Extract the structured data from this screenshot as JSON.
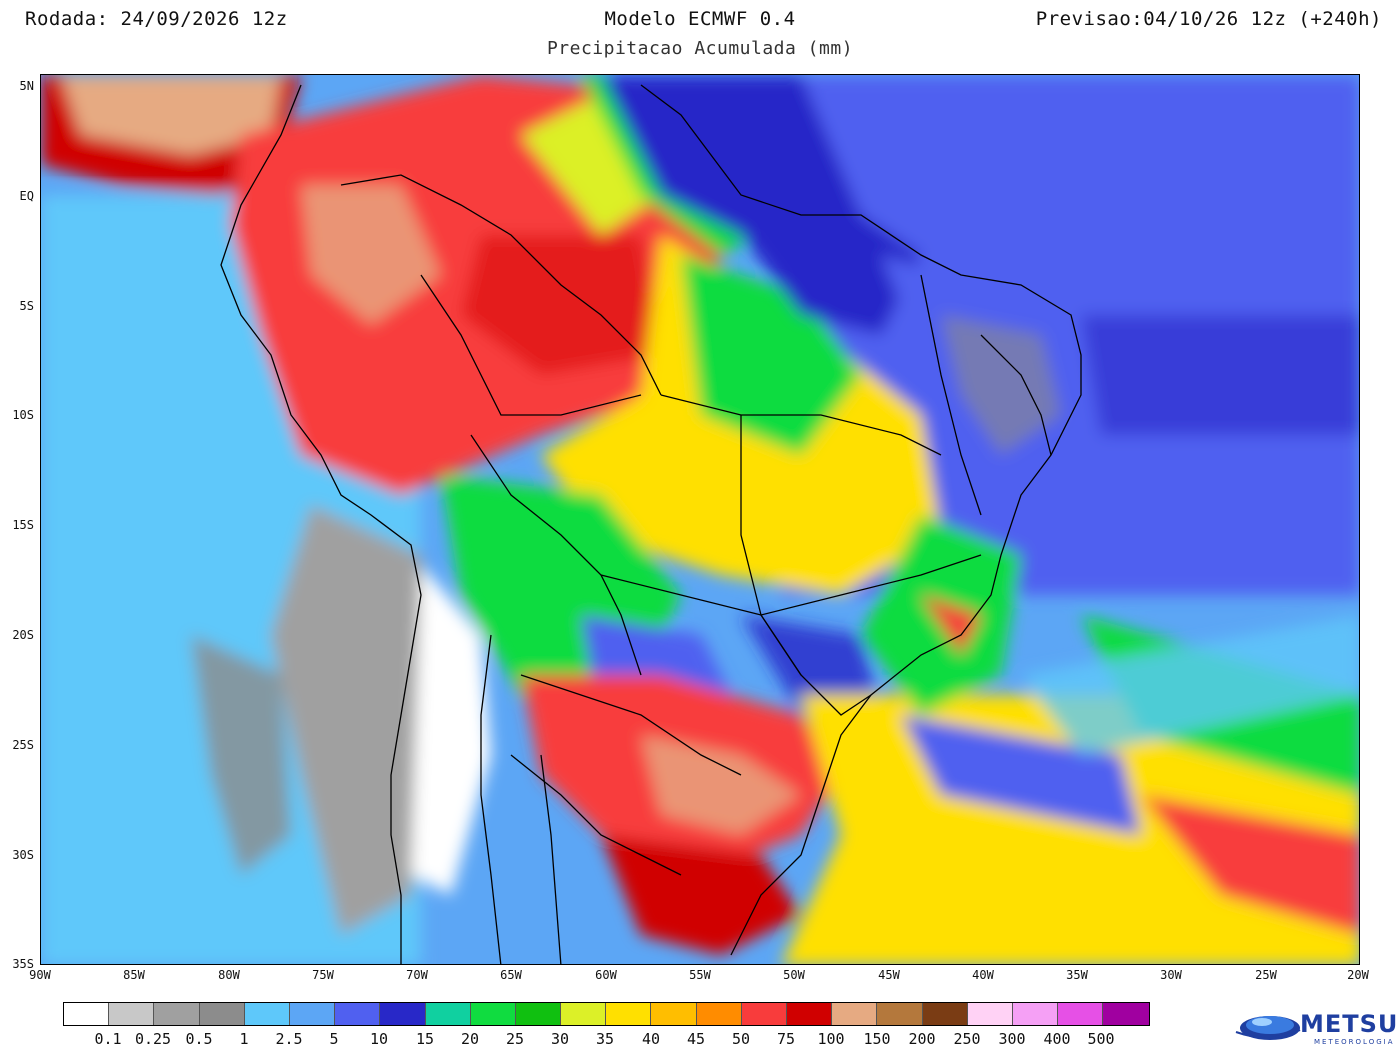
{
  "header": {
    "left": "Rodada: 24/09/2026 12z",
    "center": "Modelo ECMWF 0.4",
    "right": "Previsao:04/10/26 12z (+240h)",
    "subtitle": "Precipitacao Acumulada (mm)"
  },
  "axes": {
    "lat_labels": [
      "5N",
      "EQ",
      "5S",
      "10S",
      "15S",
      "20S",
      "25S",
      "30S",
      "35S"
    ],
    "lon_labels": [
      "90W",
      "85W",
      "80W",
      "75W",
      "70W",
      "65W",
      "60W",
      "55W",
      "50W",
      "45W",
      "40W",
      "35W",
      "30W",
      "25W",
      "20W"
    ]
  },
  "map": {
    "lat_range": [
      6.6,
      -35
    ],
    "lon_range": [
      -90,
      -20
    ]
  },
  "legend": {
    "colors": [
      "#ffffff",
      "#c8c8c8",
      "#a0a0a0",
      "#8c8c8c",
      "#5ec8fa",
      "#5ca6f5",
      "#5060f0",
      "#2828c8",
      "#10d0a0",
      "#10dc40",
      "#10c010",
      "#dcf028",
      "#ffe000",
      "#ffbe00",
      "#ff8c00",
      "#f83c3c",
      "#d00000",
      "#e6aa82",
      "#b4783c",
      "#7a3c14",
      "#ffd2f5",
      "#f5a0f5",
      "#e650e6",
      "#a000a0"
    ],
    "ticks": [
      "0.1",
      "0.25",
      "0.5",
      "1",
      "2.5",
      "5",
      "10",
      "15",
      "20",
      "25",
      "30",
      "35",
      "40",
      "45",
      "50",
      "75",
      "100",
      "150",
      "200",
      "250",
      "300",
      "400",
      "500"
    ]
  },
  "logo": {
    "name": "METSUL",
    "sub": "METEOROLOGIA"
  }
}
